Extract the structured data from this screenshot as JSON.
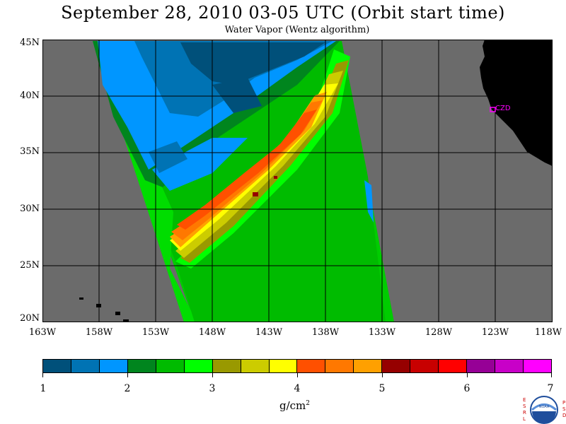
{
  "header": {
    "title": "September 28, 2010  03-05 UTC  (Orbit start time)",
    "subtitle": "Water Vapor (Wentz algorithm)"
  },
  "map": {
    "lat_labels": [
      "45N",
      "40N",
      "35N",
      "30N",
      "25N",
      "20N"
    ],
    "lon_labels": [
      "163W",
      "158W",
      "153W",
      "148W",
      "143W",
      "138W",
      "133W",
      "128W",
      "123W",
      "118W"
    ],
    "station_label": "CZD",
    "colors": {
      "ocean_background": "#6b6b6b",
      "land": "#000000",
      "grid": "#000000",
      "station": "#ff00ff"
    }
  },
  "colorbar": {
    "labels": [
      "1",
      "2",
      "3",
      "4",
      "5",
      "6",
      "7"
    ],
    "colors": [
      "#00507a",
      "#0073b4",
      "#0096ff",
      "#00851e",
      "#00bb00",
      "#00ff00",
      "#999900",
      "#cccc00",
      "#ffff00",
      "#ff5000",
      "#ff7800",
      "#ffa000",
      "#960000",
      "#c80000",
      "#ff0000",
      "#960096",
      "#c800c8",
      "#ff00ff"
    ],
    "units": "g/cm",
    "units_sup": "2"
  },
  "logo": {
    "left_text": "ESRL",
    "right_text": "PSD",
    "center_text": "NOAA"
  }
}
